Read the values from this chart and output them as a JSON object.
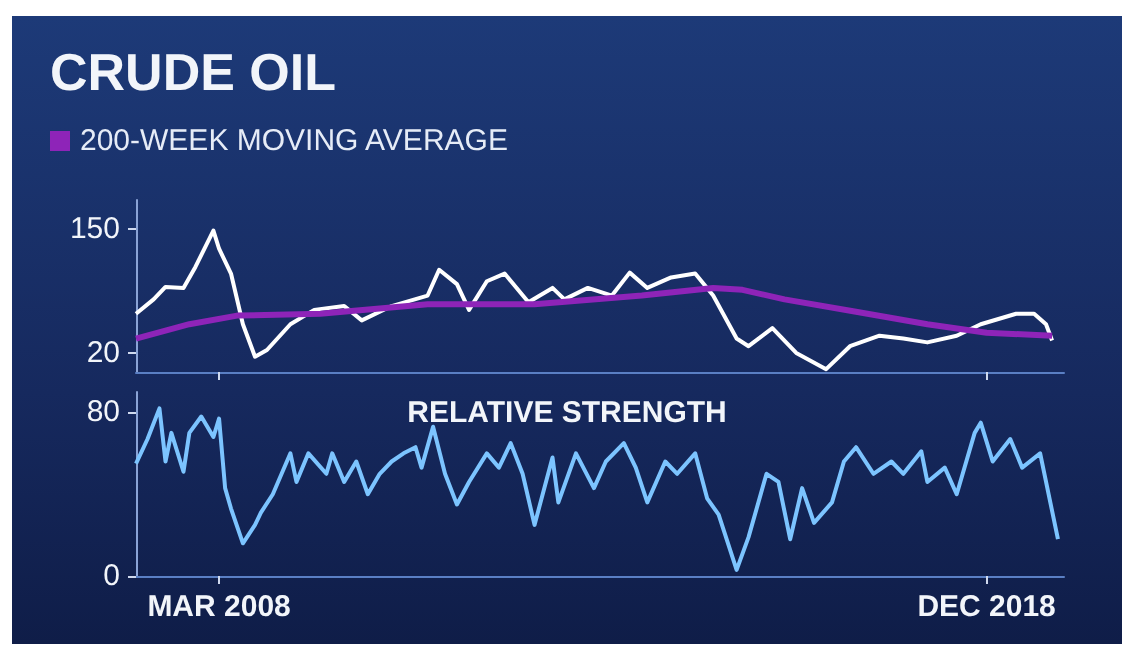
{
  "chart_data": [
    {
      "type": "line",
      "title": "CRUDE OIL",
      "legend": "top left",
      "tick_labels": "y",
      "xlim": [
        "2007-01",
        "2020-01"
      ],
      "xticks": [
        {
          "value": "2008-03",
          "label": null
        },
        {
          "value": "2018-12",
          "label": null
        }
      ],
      "ylim": [
        0,
        180
      ],
      "yticks": [
        150,
        20
      ],
      "series": [
        {
          "color": "#ffffff",
          "x": [
            "2007-01",
            "2007-04",
            "2007-06",
            "2007-09",
            "2007-11",
            "2008-02",
            "2008-03",
            "2008-05",
            "2008-07",
            "2008-09",
            "2008-11",
            "2009-03",
            "2009-07",
            "2009-12",
            "2010-03",
            "2010-08",
            "2011-02",
            "2011-04",
            "2011-07",
            "2011-09",
            "2011-12",
            "2012-03",
            "2012-07",
            "2012-11",
            "2013-01",
            "2013-05",
            "2013-09",
            "2013-12",
            "2014-03",
            "2014-07",
            "2014-11",
            "2015-02",
            "2015-06",
            "2015-08",
            "2015-12",
            "2016-04",
            "2016-09",
            "2017-01",
            "2017-06",
            "2017-10",
            "2018-02",
            "2018-07",
            "2018-11",
            "2019-05",
            "2019-08",
            "2019-10",
            "2019-11"
          ],
          "values": [
            61,
            76,
            89,
            88,
            110,
            148,
            129,
            103,
            50,
            16,
            23,
            50,
            65,
            69,
            54,
            69,
            80,
            107,
            92,
            65,
            95,
            103,
            73,
            88,
            76,
            88,
            80,
            104,
            88,
            99,
            103,
            80,
            35,
            27,
            46,
            20,
            3,
            27,
            38,
            35,
            31,
            38,
            50,
            61,
            61,
            50,
            33
          ]
        },
        {
          "name": "200-WEEK MOVING AVERAGE",
          "color": "#8e24b8",
          "x": [
            "2007-01",
            "2007-10",
            "2008-06",
            "2009-08",
            "2011-02",
            "2012-08",
            "2014-02",
            "2015-02",
            "2015-07",
            "2016-02",
            "2017-02",
            "2018-02",
            "2018-12",
            "2019-11"
          ],
          "values": [
            35,
            50,
            59,
            61,
            71,
            71,
            80,
            88,
            86,
            76,
            63,
            50,
            41,
            38
          ]
        }
      ]
    },
    {
      "type": "line",
      "title": "RELATIVE STRENGTH",
      "xlim": [
        "2007-01",
        "2020-01"
      ],
      "xticks": [
        {
          "value": "2008-03",
          "label": "MAR 2008"
        },
        {
          "value": "2018-12",
          "label": "DEC 2018"
        }
      ],
      "ylim": [
        0,
        90
      ],
      "yticks": [
        80,
        0
      ],
      "series": [
        {
          "color": "#7cc4ff",
          "x": [
            "2007-01",
            "2007-03",
            "2007-05",
            "2007-06",
            "2007-07",
            "2007-09",
            "2007-10",
            "2007-12",
            "2008-02",
            "2008-03",
            "2008-04",
            "2008-05",
            "2008-07",
            "2008-09",
            "2008-10",
            "2008-12",
            "2009-03",
            "2009-04",
            "2009-06",
            "2009-09",
            "2009-10",
            "2009-12",
            "2010-02",
            "2010-04",
            "2010-06",
            "2010-08",
            "2010-10",
            "2010-12",
            "2011-01",
            "2011-03",
            "2011-05",
            "2011-07",
            "2011-09",
            "2011-12",
            "2012-02",
            "2012-04",
            "2012-06",
            "2012-08",
            "2012-11",
            "2012-12",
            "2013-03",
            "2013-06",
            "2013-08",
            "2013-11",
            "2014-01",
            "2014-03",
            "2014-06",
            "2014-08",
            "2014-11",
            "2015-01",
            "2015-03",
            "2015-06",
            "2015-08",
            "2015-11",
            "2016-01",
            "2016-03",
            "2016-05",
            "2016-07",
            "2016-10",
            "2016-12",
            "2017-02",
            "2017-05",
            "2017-08",
            "2017-10",
            "2018-01",
            "2018-02",
            "2018-05",
            "2018-07",
            "2018-10",
            "2018-11",
            "2019-01",
            "2019-04",
            "2019-06",
            "2019-09",
            "2019-12"
          ],
          "values": [
            55,
            67,
            82,
            56,
            70,
            51,
            70,
            78,
            68,
            77,
            43,
            33,
            16,
            25,
            31,
            40,
            60,
            46,
            60,
            50,
            60,
            46,
            56,
            40,
            50,
            56,
            60,
            63,
            53,
            73,
            50,
            35,
            46,
            60,
            53,
            65,
            50,
            25,
            58,
            36,
            60,
            43,
            56,
            65,
            53,
            36,
            56,
            50,
            60,
            38,
            30,
            3,
            19,
            50,
            46,
            18,
            43,
            26,
            36,
            56,
            63,
            50,
            56,
            50,
            61,
            46,
            53,
            40,
            70,
            75,
            56,
            67,
            53,
            60,
            18
          ]
        }
      ]
    }
  ]
}
